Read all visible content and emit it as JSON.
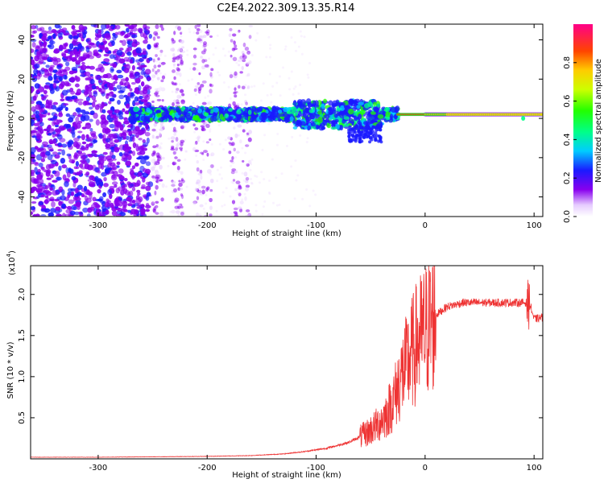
{
  "title": "C2E4.2022.309.13.35.R14",
  "chart_data": [
    {
      "type": "heatmap",
      "xlabel": "Height of straight line (km)",
      "ylabel": "Frequency (Hz)",
      "xlim": [
        -362,
        108
      ],
      "ylim": [
        -50,
        48
      ],
      "xticks": [
        -300,
        -200,
        -100,
        0,
        100
      ],
      "yticks": [
        -40,
        -20,
        0,
        20,
        40
      ],
      "colorbar": {
        "label": "Normalized spectral amplitude",
        "range": [
          0,
          1
        ],
        "ticks": [
          0.0,
          0.2,
          0.4,
          0.6,
          0.8
        ],
        "colormap": "rainbow"
      },
      "grid": false
    },
    {
      "type": "line",
      "xlabel": "Height of straight line (km)",
      "ylabel": "SNR (10 * v/v)",
      "yscale_label": "(x10",
      "yscale_exp": "4",
      "yscale_close": ")",
      "xlim": [
        -362,
        108
      ],
      "ylim": [
        0,
        2.35
      ],
      "xticks": [
        -300,
        -200,
        -100,
        0,
        100
      ],
      "yticks": [
        0.5,
        1.0,
        1.5,
        2.0
      ],
      "line_color": "#ee3333",
      "grid": false,
      "series": [
        {
          "x": [
            -362,
            -300,
            -250,
            -200,
            -160,
            -130,
            -110,
            -90,
            -70,
            -55,
            -45,
            -35,
            -28,
            -22,
            -15,
            -8,
            0,
            10,
            20,
            35,
            50,
            70,
            85,
            93,
            97,
            100,
            108
          ],
          "y": [
            0.02,
            0.02,
            0.025,
            0.03,
            0.04,
            0.06,
            0.09,
            0.13,
            0.2,
            0.3,
            0.4,
            0.55,
            0.75,
            1.0,
            1.2,
            1.4,
            1.55,
            1.75,
            1.85,
            1.9,
            1.9,
            1.9,
            1.9,
            1.9,
            1.85,
            1.7,
            1.72
          ]
        }
      ]
    }
  ]
}
